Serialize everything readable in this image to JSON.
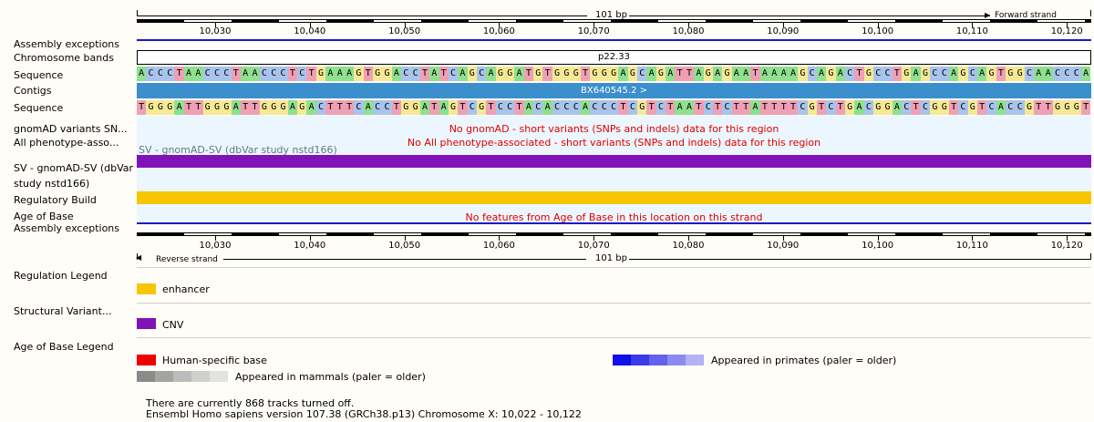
{
  "ruler": {
    "length_label": "101 bp",
    "forward_label": "Forward strand",
    "reverse_label": "Reverse strand",
    "ticks": [
      "10,030",
      "10,040",
      "10,050",
      "10,060",
      "10,070",
      "10,080",
      "10,090",
      "10,100",
      "10,110",
      "10,120"
    ]
  },
  "tracks": {
    "assembly_exceptions": "Assembly exceptions",
    "chromosome_bands": "Chromosome bands",
    "sequence": "Sequence",
    "contigs": "Contigs",
    "gnomad_variants": "gnomAD variants SN...",
    "phenotype": "All phenotype-asso...",
    "sv_line1": "SV - gnomAD-SV (dbVar",
    "sv_line2": "study nstd166)",
    "regulatory_build": "Regulatory Build",
    "age_of_base": "Age of Base",
    "assembly_exceptions_2": "Assembly exceptions"
  },
  "chromosome_band_value": "p22.33",
  "contig_value": "BX640545.2 >",
  "sequence_forward": "ACCCTAACCCTAACCCTCTGAAAGTGGACCTATCAGCAGGATGTGGGTGGGAGCAGATTAGAGAATAAAAGCAGACTGCCTGAGCCAGCAGTGGCAACCCA",
  "sequence_reverse": "TGGGATTGGGATTGGGAGACTTTCACCTGGATAGTCGTCCTACACCCACCCTCGTCTAATCTCTTATTTTCGTCTGACGGACTCGGTCGTCACCGTTGGGT",
  "messages": {
    "gnomad": "No gnomAD - short variants (SNPs and indels) data for this region",
    "phenotype": "No All phenotype-associated - short variants (SNPs and indels) data for this region",
    "sv_overlay": "SV - gnomAD-SV (dbVar study nstd166)",
    "age_of_base": "No features from Age of Base in this location on this strand"
  },
  "legends": {
    "regulation_title": "Regulation Legend",
    "enhancer": "enhancer",
    "structural_title": "Structural Variant...",
    "cnv": "CNV",
    "age_title": "Age of Base Legend",
    "human_specific": "Human-specific base",
    "primates": "Appeared in primates (paler = older)",
    "mammals": "Appeared in mammals (paler = older)"
  },
  "footer": {
    "tracks_off": "There are currently 868 tracks turned off.",
    "version": "Ensembl Homo sapiens version 107.38 (GRCh38.p13) Chromosome X: 10,022 - 10,122"
  },
  "colors": {
    "A": "#8fe08f",
    "C": "#a9c4ec",
    "G": "#f5e995",
    "T": "#efa0b4",
    "assembly": "#1b1bc8",
    "contig": "#3b8fcc",
    "sv": "#8112b8",
    "regulatory": "#f6c600",
    "human": "#ee0000",
    "primates": [
      "#1010e8",
      "#3a3ae8",
      "#6262ec",
      "#8a8af0",
      "#b2b2f4"
    ],
    "mammals": [
      "#8a8a8a",
      "#a4a4a4",
      "#bcbcbc",
      "#d0d0d0",
      "#e2e2e2"
    ]
  }
}
